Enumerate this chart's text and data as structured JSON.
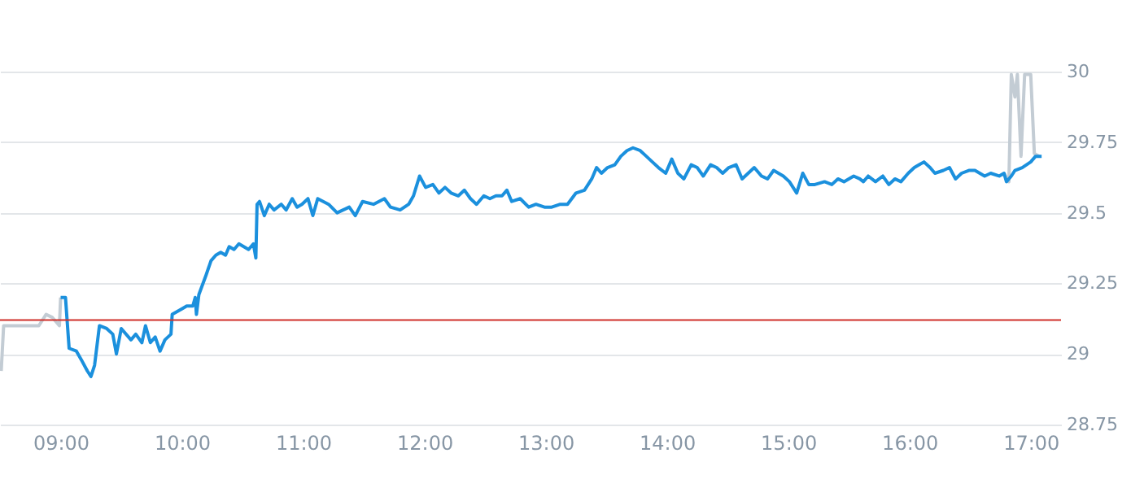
{
  "chart_data": {
    "type": "line",
    "xlim": [
      8.5,
      17.25
    ],
    "ylim": [
      28.75,
      30
    ],
    "xticks": [
      {
        "value": 9,
        "label": "09:00"
      },
      {
        "value": 10,
        "label": "10:00"
      },
      {
        "value": 11,
        "label": "11:00"
      },
      {
        "value": 12,
        "label": "12:00"
      },
      {
        "value": 13,
        "label": "13:00"
      },
      {
        "value": 14,
        "label": "14:00"
      },
      {
        "value": 15,
        "label": "15:00"
      },
      {
        "value": 16,
        "label": "16:00"
      },
      {
        "value": 17,
        "label": "17:00"
      }
    ],
    "yticks": [
      28.75,
      29,
      29.25,
      29.5,
      29.75,
      30
    ],
    "grid": "y",
    "marker": "none",
    "line_style": "solid",
    "ref_lines": [
      {
        "axis": "y",
        "value": 29.12,
        "color": "#d0302a"
      }
    ],
    "series": [
      {
        "color": "#c3ccd4",
        "x": [
          8.51,
          8.53,
          8.82,
          8.88,
          8.93,
          8.99,
          9.0
        ],
        "values": [
          28.94,
          29.1,
          29.1,
          29.14,
          29.13,
          29.1,
          29.2
        ]
      },
      {
        "color": "#c3ccd4",
        "x": [
          16.78,
          16.82,
          16.84,
          16.87,
          16.89,
          16.92,
          16.95,
          17.0,
          17.03,
          17.07
        ],
        "values": [
          29.64,
          29.61,
          29.99,
          29.91,
          29.99,
          29.7,
          29.99,
          29.99,
          29.71,
          29.7
        ]
      },
      {
        "color": "#1b90dd",
        "x": [
          9.0,
          9.04,
          9.07,
          9.13,
          9.17,
          9.22,
          9.25,
          9.28,
          9.32,
          9.38,
          9.43,
          9.46,
          9.5,
          9.58,
          9.62,
          9.67,
          9.7,
          9.74,
          9.78,
          9.82,
          9.86,
          9.91,
          9.92,
          10.0,
          10.04,
          10.09,
          10.11,
          10.12,
          10.14,
          10.2,
          10.24,
          10.28,
          10.32,
          10.36,
          10.39,
          10.43,
          10.47,
          10.51,
          10.55,
          10.59,
          10.61,
          10.62,
          10.64,
          10.68,
          10.72,
          10.76,
          10.82,
          10.86,
          10.91,
          10.95,
          10.99,
          11.04,
          11.08,
          11.12,
          11.21,
          11.28,
          11.33,
          11.38,
          11.43,
          11.49,
          11.58,
          11.67,
          11.72,
          11.8,
          11.87,
          11.91,
          11.96,
          12.01,
          12.07,
          12.12,
          12.17,
          12.22,
          12.28,
          12.33,
          12.38,
          12.43,
          12.49,
          12.54,
          12.59,
          12.64,
          12.68,
          12.72,
          12.79,
          12.86,
          12.92,
          12.99,
          13.05,
          13.12,
          13.18,
          13.25,
          13.32,
          13.38,
          13.42,
          13.46,
          13.51,
          13.57,
          13.62,
          13.67,
          13.72,
          13.78,
          13.83,
          13.88,
          13.93,
          13.99,
          14.04,
          14.09,
          14.14,
          14.2,
          14.25,
          14.3,
          14.36,
          14.41,
          14.46,
          14.51,
          14.57,
          14.62,
          14.67,
          14.72,
          14.78,
          14.83,
          14.88,
          14.96,
          15.01,
          15.07,
          15.12,
          15.17,
          15.22,
          15.3,
          15.36,
          15.41,
          15.46,
          15.54,
          15.59,
          15.62,
          15.66,
          15.72,
          15.78,
          15.83,
          15.88,
          15.93,
          15.99,
          16.04,
          16.08,
          16.12,
          16.17,
          16.21,
          16.28,
          16.33,
          16.38,
          16.43,
          16.49,
          16.54,
          16.62,
          16.67,
          16.74,
          16.78,
          16.8,
          16.84,
          16.87,
          16.93,
          17.0,
          17.04,
          17.09
        ],
        "values": [
          29.2,
          29.2,
          29.02,
          29.01,
          28.98,
          28.94,
          28.92,
          28.96,
          29.1,
          29.09,
          29.07,
          29.0,
          29.09,
          29.05,
          29.07,
          29.04,
          29.1,
          29.04,
          29.06,
          29.01,
          29.05,
          29.07,
          29.14,
          29.16,
          29.17,
          29.17,
          29.2,
          29.14,
          29.21,
          29.28,
          29.33,
          29.35,
          29.36,
          29.35,
          29.38,
          29.37,
          29.39,
          29.38,
          29.37,
          29.39,
          29.34,
          29.53,
          29.54,
          29.49,
          29.53,
          29.51,
          29.53,
          29.51,
          29.55,
          29.52,
          29.53,
          29.55,
          29.49,
          29.55,
          29.53,
          29.5,
          29.51,
          29.52,
          29.49,
          29.54,
          29.53,
          29.55,
          29.52,
          29.51,
          29.53,
          29.56,
          29.63,
          29.59,
          29.6,
          29.57,
          29.59,
          29.57,
          29.56,
          29.58,
          29.55,
          29.53,
          29.56,
          29.55,
          29.56,
          29.56,
          29.58,
          29.54,
          29.55,
          29.52,
          29.53,
          29.52,
          29.52,
          29.53,
          29.53,
          29.57,
          29.58,
          29.62,
          29.66,
          29.64,
          29.66,
          29.67,
          29.7,
          29.72,
          29.73,
          29.72,
          29.7,
          29.68,
          29.66,
          29.64,
          29.69,
          29.64,
          29.62,
          29.67,
          29.66,
          29.63,
          29.67,
          29.66,
          29.64,
          29.66,
          29.67,
          29.62,
          29.64,
          29.66,
          29.63,
          29.62,
          29.65,
          29.63,
          29.61,
          29.57,
          29.64,
          29.6,
          29.6,
          29.61,
          29.6,
          29.62,
          29.61,
          29.63,
          29.62,
          29.61,
          29.63,
          29.61,
          29.63,
          29.6,
          29.62,
          29.61,
          29.64,
          29.66,
          29.67,
          29.68,
          29.66,
          29.64,
          29.65,
          29.66,
          29.62,
          29.64,
          29.65,
          29.65,
          29.63,
          29.64,
          29.63,
          29.64,
          29.61,
          29.63,
          29.65,
          29.66,
          29.68,
          29.7,
          29.7
        ]
      }
    ]
  }
}
